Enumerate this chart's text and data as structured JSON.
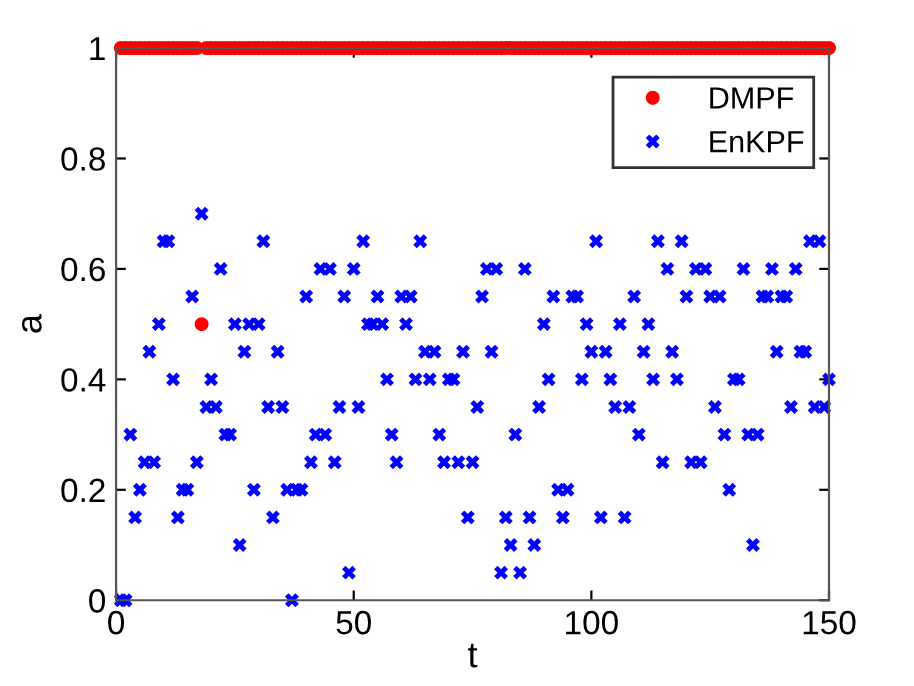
{
  "chart_data": {
    "type": "scatter",
    "xlabel": "t",
    "ylabel": "a",
    "xlim": [
      0,
      150
    ],
    "xticks": [
      0,
      50,
      100,
      150
    ],
    "ylim": [
      0,
      1
    ],
    "yticks": [
      0,
      0.2,
      0.4,
      0.6,
      0.8,
      1
    ],
    "grid": false,
    "legend": "top right",
    "series": [
      {
        "name": "DMPF",
        "color": "#ff0000",
        "marker": "circle",
        "x": [
          1,
          2,
          3,
          4,
          5,
          6,
          7,
          8,
          9,
          10,
          11,
          12,
          13,
          14,
          15,
          16,
          17,
          18,
          19,
          20,
          21,
          22,
          23,
          24,
          25,
          26,
          27,
          28,
          29,
          30,
          31,
          32,
          33,
          34,
          35,
          36,
          37,
          38,
          39,
          40,
          41,
          42,
          43,
          44,
          45,
          46,
          47,
          48,
          49,
          50,
          51,
          52,
          53,
          54,
          55,
          56,
          57,
          58,
          59,
          60,
          61,
          62,
          63,
          64,
          65,
          66,
          67,
          68,
          69,
          70,
          71,
          72,
          73,
          74,
          75,
          76,
          77,
          78,
          79,
          80,
          81,
          82,
          83,
          84,
          85,
          86,
          87,
          88,
          89,
          90,
          91,
          92,
          93,
          94,
          95,
          96,
          97,
          98,
          99,
          100,
          101,
          102,
          103,
          104,
          105,
          106,
          107,
          108,
          109,
          110,
          111,
          112,
          113,
          114,
          115,
          116,
          117,
          118,
          119,
          120,
          121,
          122,
          123,
          124,
          125,
          126,
          127,
          128,
          129,
          130,
          131,
          132,
          133,
          134,
          135,
          136,
          137,
          138,
          139,
          140,
          141,
          142,
          143,
          144,
          145,
          146,
          147,
          148,
          149,
          150
        ],
        "values": [
          1,
          1,
          1,
          1,
          1,
          1,
          1,
          1,
          1,
          1,
          1,
          1,
          1,
          1,
          1,
          1,
          1,
          0.5,
          1,
          1,
          1,
          1,
          1,
          1,
          1,
          1,
          1,
          1,
          1,
          1,
          1,
          1,
          1,
          1,
          1,
          1,
          1,
          1,
          1,
          1,
          1,
          1,
          1,
          1,
          1,
          1,
          1,
          1,
          1,
          1,
          1,
          1,
          1,
          1,
          1,
          1,
          1,
          1,
          1,
          1,
          1,
          1,
          1,
          1,
          1,
          1,
          1,
          1,
          1,
          1,
          1,
          1,
          1,
          1,
          1,
          1,
          1,
          1,
          1,
          1,
          1,
          1,
          1,
          1,
          1,
          1,
          1,
          1,
          1,
          1,
          1,
          1,
          1,
          1,
          1,
          1,
          1,
          1,
          1,
          1,
          1,
          1,
          1,
          1,
          1,
          1,
          1,
          1,
          1,
          1,
          1,
          1,
          1,
          1,
          1,
          1,
          1,
          1,
          1,
          1,
          1,
          1,
          1,
          1,
          1,
          1,
          1,
          1,
          1,
          1,
          1,
          1,
          1,
          1,
          1,
          1,
          1,
          1,
          1,
          1,
          1,
          1,
          1,
          1,
          1,
          1,
          1,
          1,
          1,
          1
        ]
      },
      {
        "name": "EnKPF",
        "color": "#0000ff",
        "marker": "cross",
        "x": [
          1,
          2,
          3,
          4,
          5,
          6,
          7,
          8,
          9,
          10,
          11,
          12,
          13,
          14,
          15,
          16,
          17,
          18,
          19,
          20,
          21,
          22,
          23,
          24,
          25,
          26,
          27,
          28,
          29,
          30,
          31,
          32,
          33,
          34,
          35,
          36,
          37,
          38,
          39,
          40,
          41,
          42,
          43,
          44,
          45,
          46,
          47,
          48,
          49,
          50,
          51,
          52,
          53,
          54,
          55,
          56,
          57,
          58,
          59,
          60,
          61,
          62,
          63,
          64,
          65,
          66,
          67,
          68,
          69,
          70,
          71,
          72,
          73,
          74,
          75,
          76,
          77,
          78,
          79,
          80,
          81,
          82,
          83,
          84,
          85,
          86,
          87,
          88,
          89,
          90,
          91,
          92,
          93,
          94,
          95,
          96,
          97,
          98,
          99,
          100,
          101,
          102,
          103,
          104,
          105,
          106,
          107,
          108,
          109,
          110,
          111,
          112,
          113,
          114,
          115,
          116,
          117,
          118,
          119,
          120,
          121,
          122,
          123,
          124,
          125,
          126,
          127,
          128,
          129,
          130,
          131,
          132,
          133,
          134,
          135,
          136,
          137,
          138,
          139,
          140,
          141,
          142,
          143,
          144,
          145,
          146,
          147,
          148,
          149,
          150
        ],
        "values": [
          0,
          0,
          0.3,
          0.15,
          0.2,
          0.25,
          0.45,
          0.25,
          0.5,
          0.65,
          0.65,
          0.4,
          0.15,
          0.2,
          0.2,
          0.55,
          0.25,
          0.7,
          0.35,
          0.4,
          0.35,
          0.6,
          0.3,
          0.3,
          0.5,
          0.1,
          0.45,
          0.5,
          0.2,
          0.5,
          0.65,
          0.35,
          0.15,
          0.45,
          0.35,
          0.2,
          0,
          0.2,
          0.2,
          0.55,
          0.25,
          0.3,
          0.6,
          0.3,
          0.6,
          0.25,
          0.35,
          0.55,
          0.05,
          0.6,
          0.35,
          0.65,
          0.5,
          0.5,
          0.55,
          0.5,
          0.4,
          0.3,
          0.25,
          0.55,
          0.5,
          0.55,
          0.4,
          0.65,
          0.45,
          0.4,
          0.45,
          0.3,
          0.25,
          0.4,
          0.4,
          0.25,
          0.45,
          0.15,
          0.25,
          0.35,
          0.55,
          0.6,
          0.45,
          0.6,
          0.05,
          0.15,
          0.1,
          0.3,
          0.05,
          0.6,
          0.15,
          0.1,
          0.35,
          0.5,
          0.4,
          0.55,
          0.2,
          0.15,
          0.2,
          0.55,
          0.55,
          0.4,
          0.5,
          0.45,
          0.65,
          0.15,
          0.45,
          0.4,
          0.35,
          0.5,
          0.15,
          0.35,
          0.55,
          0.3,
          0.45,
          0.5,
          0.4,
          0.65,
          0.25,
          0.6,
          0.45,
          0.4,
          0.65,
          0.55,
          0.25,
          0.6,
          0.25,
          0.6,
          0.55,
          0.35,
          0.55,
          0.3,
          0.2,
          0.4,
          0.4,
          0.6,
          0.3,
          0.1,
          0.3,
          0.55,
          0.55,
          0.6,
          0.45,
          0.55,
          0.55,
          0.35,
          0.6,
          0.45,
          0.45,
          0.65,
          0.35,
          0.65,
          0.35,
          0.4
        ]
      }
    ]
  }
}
